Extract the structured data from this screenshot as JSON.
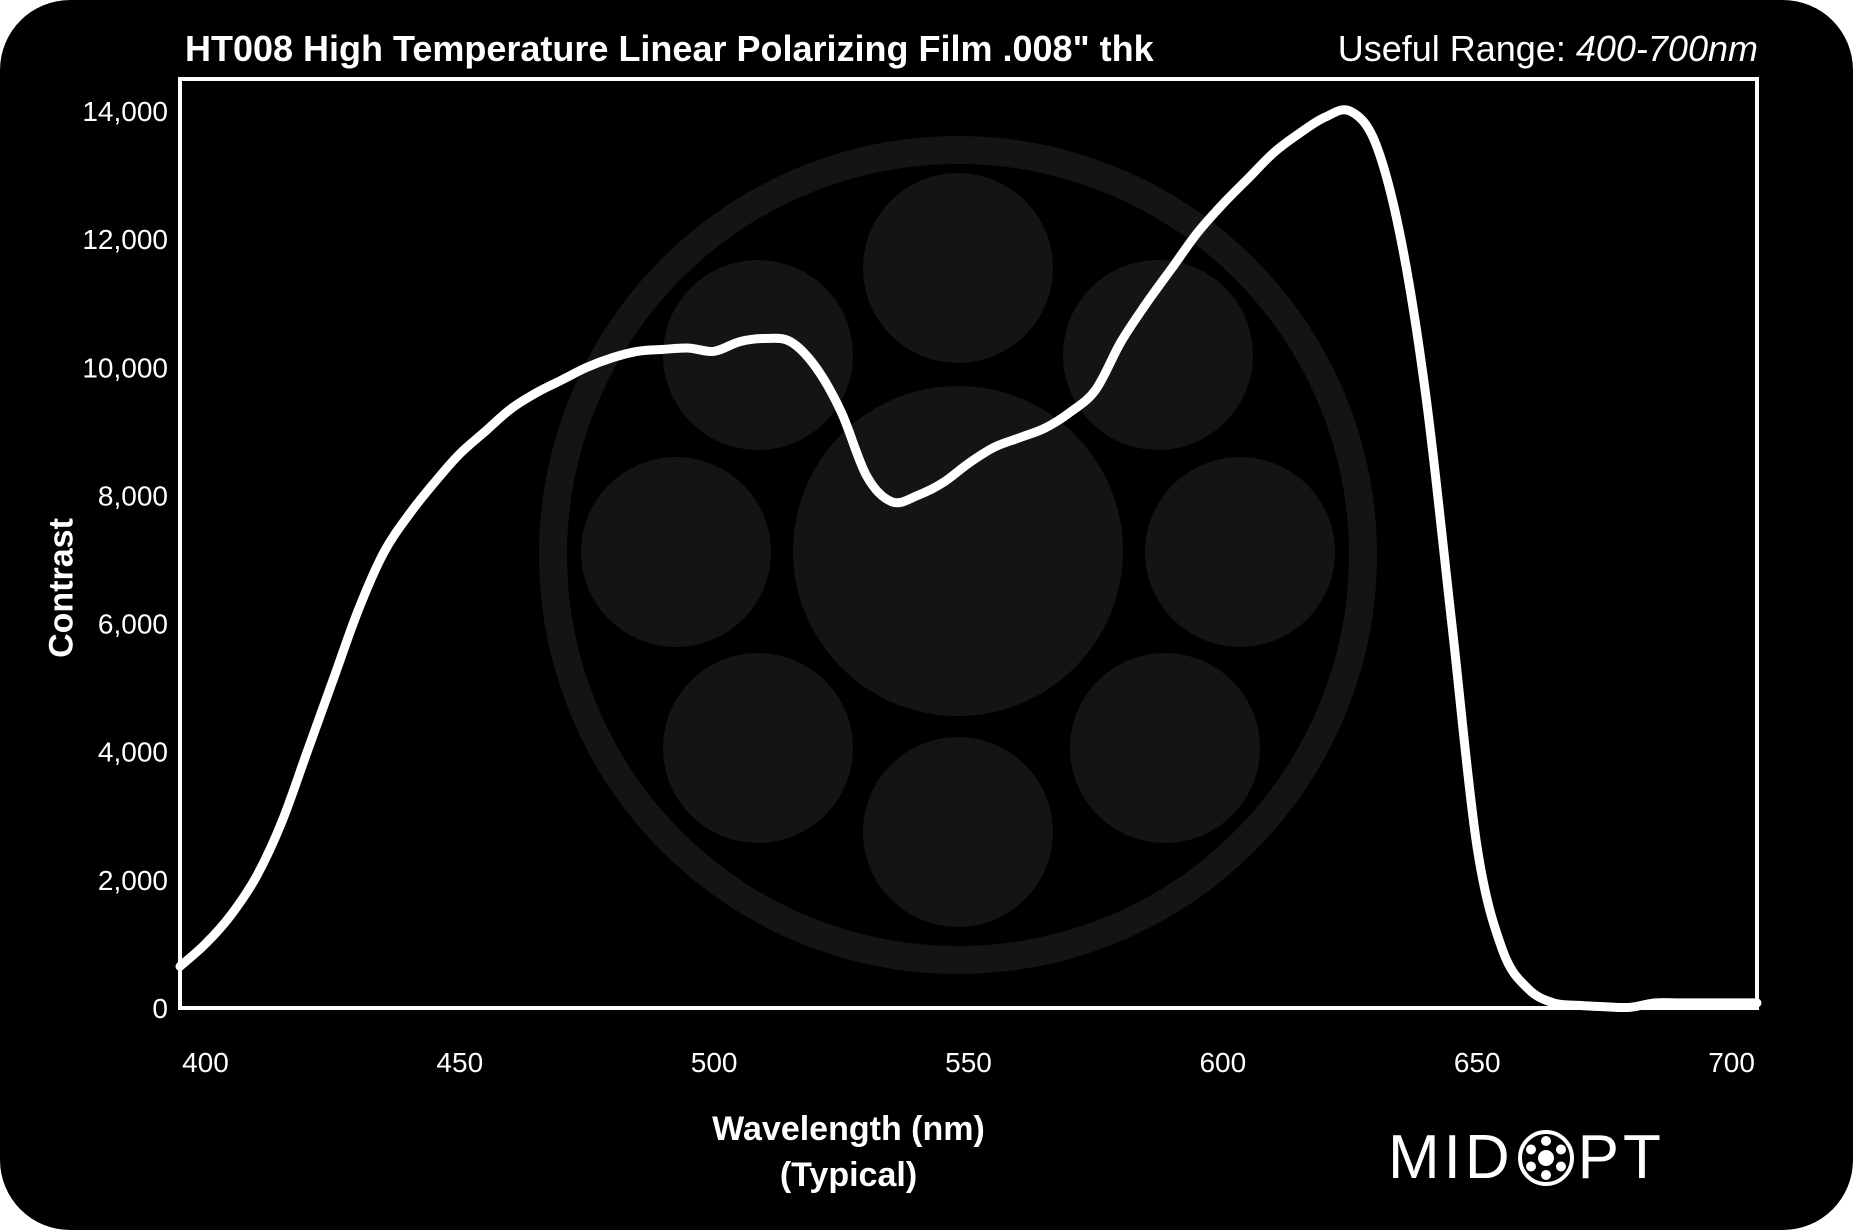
{
  "header": {
    "title": "HT008 High Temperature Linear Polarizing Film .008\" thk",
    "useful_range_label": "Useful Range:",
    "useful_range_value": "400-700nm"
  },
  "footer": {
    "xlabel_line1": "Wavelength (nm)",
    "xlabel_line2": "(Typical)",
    "logo_left": "MID",
    "logo_right": "PT"
  },
  "colors": {
    "background": "#000000",
    "foreground": "#ffffff",
    "watermark": "#141414"
  },
  "chart_data": {
    "type": "line",
    "title": "HT008 High Temperature Linear Polarizing Film .008\" thk",
    "xlabel": "Wavelength (nm)",
    "ylabel": "Contrast",
    "xlim": [
      395,
      705
    ],
    "ylim": [
      0,
      14500
    ],
    "xticks": [
      400,
      450,
      500,
      550,
      600,
      650,
      700
    ],
    "xtick_labels": [
      "400",
      "450",
      "500",
      "550",
      "600",
      "650",
      "700"
    ],
    "yticks": [
      0,
      2000,
      4000,
      6000,
      8000,
      10000,
      12000,
      14000
    ],
    "ytick_labels": [
      "0",
      "2,000",
      "4,000",
      "6,000",
      "8,000",
      "10,000",
      "12,000",
      "14,000"
    ],
    "grid": false,
    "series": [
      {
        "x": [
          395,
          400,
          405,
          410,
          415,
          420,
          425,
          430,
          435,
          440,
          445,
          450,
          455,
          460,
          465,
          470,
          475,
          480,
          485,
          490,
          495,
          500,
          505,
          510,
          515,
          520,
          525,
          530,
          535,
          540,
          545,
          550,
          555,
          560,
          565,
          570,
          575,
          580,
          585,
          590,
          595,
          600,
          605,
          610,
          615,
          620,
          625,
          630,
          635,
          640,
          645,
          650,
          655,
          660,
          665,
          670,
          675,
          680,
          685,
          690,
          695,
          700,
          705
        ],
        "y": [
          650,
          1000,
          1450,
          2050,
          2900,
          4000,
          5100,
          6200,
          7100,
          7700,
          8200,
          8650,
          9000,
          9350,
          9600,
          9800,
          10000,
          10150,
          10250,
          10280,
          10300,
          10250,
          10400,
          10450,
          10400,
          10000,
          9300,
          8300,
          7900,
          8000,
          8200,
          8500,
          8750,
          8900,
          9050,
          9300,
          9650,
          10400,
          11000,
          11550,
          12100,
          12550,
          12950,
          13350,
          13650,
          13900,
          14000,
          13500,
          12000,
          9500,
          6000,
          2500,
          900,
          300,
          80,
          40,
          20,
          10,
          80,
          80,
          80,
          80,
          80
        ]
      }
    ]
  }
}
